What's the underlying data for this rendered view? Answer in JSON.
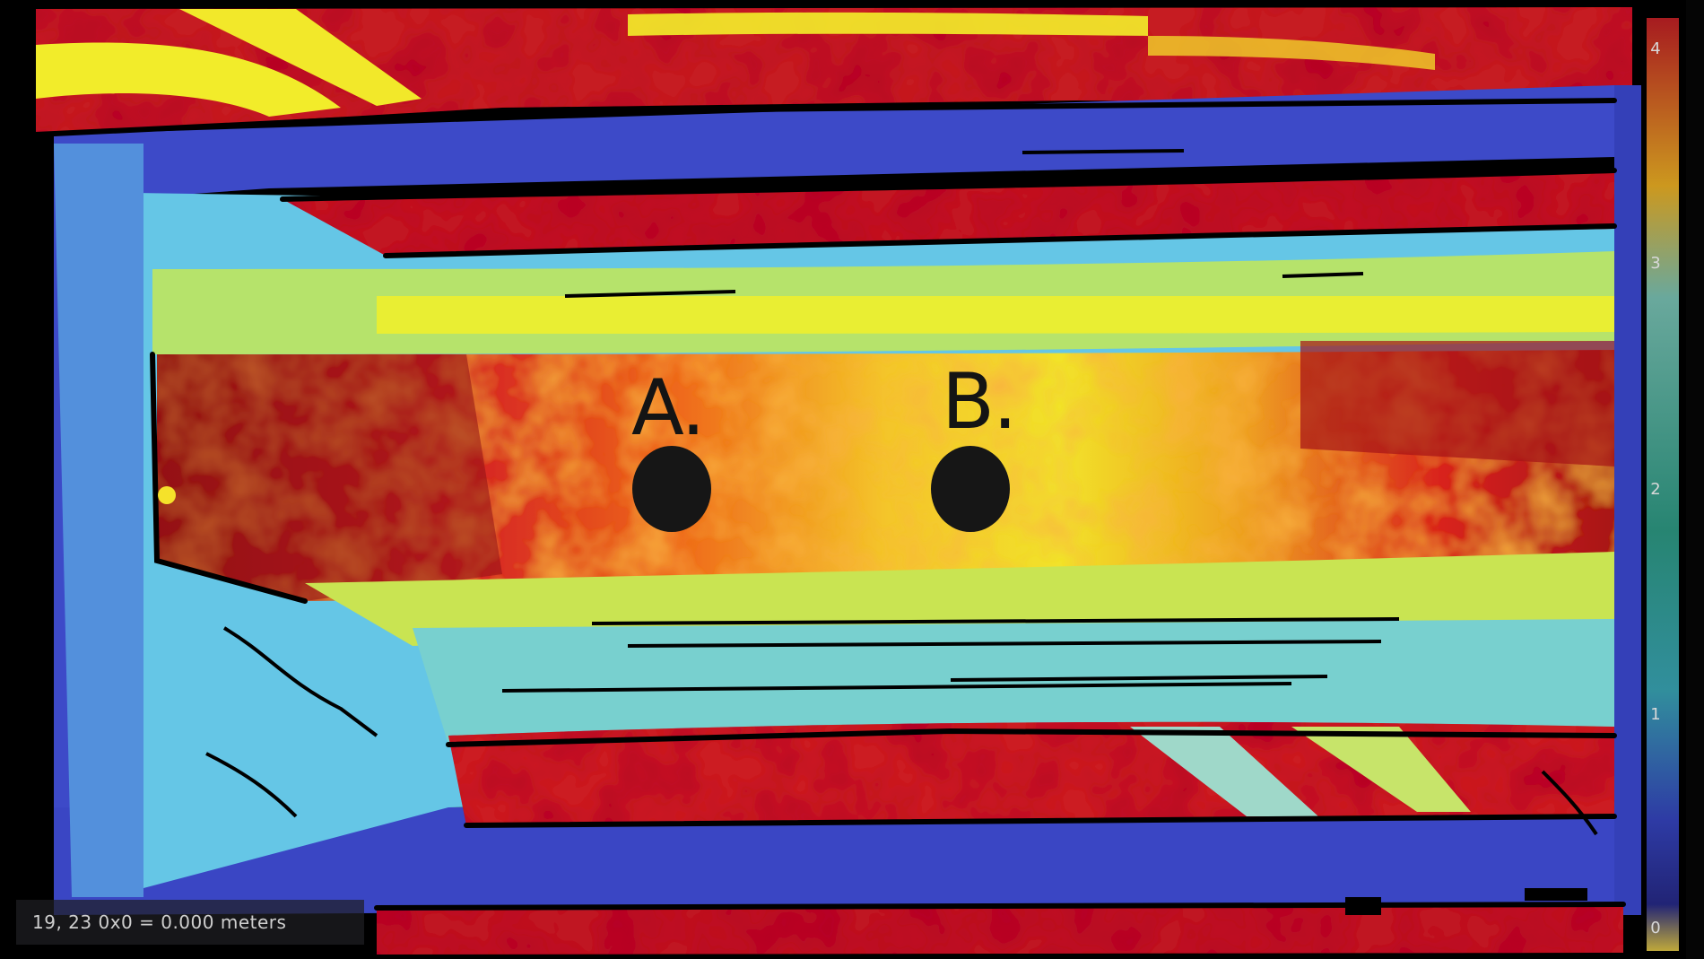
{
  "markers": [
    {
      "label": "A."
    },
    {
      "label": "B."
    }
  ],
  "readout": {
    "text": "19, 23 0x0 = 0.000 meters"
  },
  "scale": {
    "ticks": [
      "4",
      "3",
      "2",
      "1",
      "0"
    ],
    "gradient": [
      "#e0262a",
      "#f5f223",
      "#6fd0e9",
      "#3a44c8",
      "#e8d24a"
    ]
  },
  "colors": {
    "dark_red": "#8c0f14",
    "red": "#e0232a",
    "orange": "#f28a1c",
    "yellow": "#f3ee2a",
    "light_blue": "#69cbe8",
    "blue": "#3b46c6",
    "outline": "#000000"
  }
}
